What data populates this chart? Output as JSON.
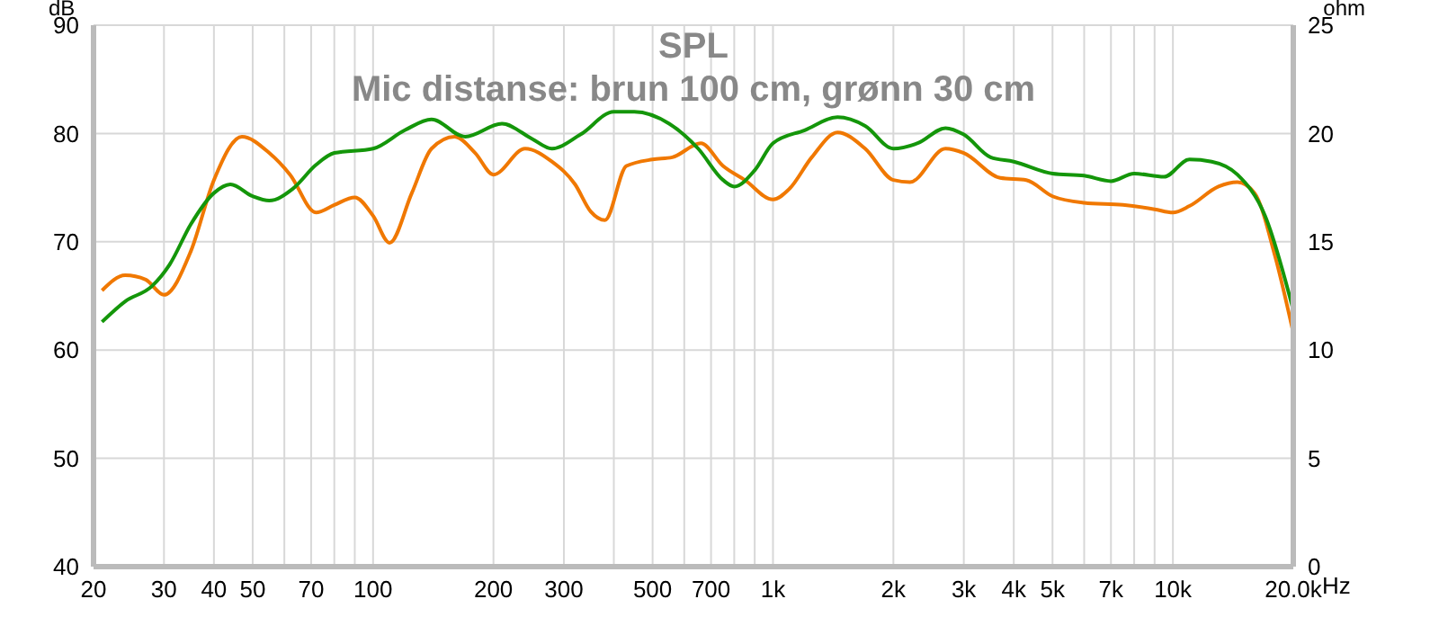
{
  "chart_data": {
    "type": "line",
    "title": "SPL",
    "subtitle": "Mic distanse: brun 100 cm, grønn 30 cm",
    "ylabel": "dB",
    "y2label": "ohm",
    "log": "x",
    "grid": true,
    "marker": "none",
    "line_style": "solid",
    "legend": false,
    "xlim": [
      20,
      20000
    ],
    "ylim": [
      40,
      90
    ],
    "y2lim": [
      0,
      25
    ],
    "xticks": [
      20,
      30,
      40,
      50,
      {
        "value": 60,
        "label": null
      },
      70,
      {
        "value": 80,
        "label": null
      },
      {
        "value": 90,
        "label": null
      },
      100,
      200,
      300,
      {
        "value": 400,
        "label": null
      },
      500,
      {
        "value": 600,
        "label": null
      },
      700,
      {
        "value": 800,
        "label": null
      },
      {
        "value": 900,
        "label": null
      },
      {
        "value": 1000,
        "label": "1k"
      },
      {
        "value": 2000,
        "label": "2k"
      },
      {
        "value": 3000,
        "label": "3k"
      },
      {
        "value": 4000,
        "label": "4k"
      },
      {
        "value": 5000,
        "label": "5k"
      },
      {
        "value": 6000,
        "label": null
      },
      {
        "value": 7000,
        "label": "7k"
      },
      {
        "value": 8000,
        "label": null
      },
      {
        "value": 9000,
        "label": null
      },
      {
        "value": 10000,
        "label": "10k"
      },
      {
        "value": 20000,
        "label": "20.0k"
      }
    ],
    "xlabel": "Hz",
    "yticks": [
      40,
      50,
      60,
      70,
      80,
      90
    ],
    "y2ticks": [
      0,
      5,
      10,
      15,
      20,
      25
    ],
    "series": [
      {
        "color": "#f07800",
        "x": [
          21,
          24,
          27,
          30,
          35,
          40,
          47,
          55,
          62,
          72,
          80,
          90,
          100,
          110,
          125,
          140,
          160,
          180,
          200,
          240,
          280,
          320,
          350,
          380,
          430,
          500,
          560,
          660,
          750,
          850,
          1000,
          1100,
          1250,
          1450,
          1700,
          2000,
          2200,
          2700,
          3000,
          3700,
          4300,
          5000,
          6000,
          7500,
          9000,
          10000,
          11000,
          13000,
          14500,
          16000,
          18000,
          20000
        ],
        "values": [
          65.5,
          66.9,
          66.5,
          65.1,
          69.1,
          75.7,
          79.7,
          78.2,
          76.2,
          72.7,
          73.4,
          74.1,
          72.4,
          69.9,
          74.5,
          78.6,
          79.7,
          78.2,
          76.2,
          78.6,
          77.4,
          75.3,
          72.8,
          72.0,
          77.0,
          77.6,
          77.8,
          79.1,
          77.0,
          75.7,
          73.9,
          74.9,
          77.8,
          80.1,
          78.6,
          75.7,
          75.5,
          78.6,
          78.2,
          75.9,
          75.7,
          74.2,
          73.6,
          73.4,
          73.0,
          72.7,
          73.3,
          75.1,
          75.5,
          74.5,
          68.7,
          61.6
        ]
      },
      {
        "color": "#14960a",
        "x": [
          21,
          24,
          28,
          31,
          35,
          40,
          44,
          50,
          55,
          63,
          72,
          80,
          100,
          120,
          140,
          170,
          210,
          250,
          280,
          330,
          400,
          450,
          550,
          650,
          750,
          800,
          900,
          1000,
          1200,
          1450,
          1700,
          2000,
          2300,
          2700,
          3000,
          3500,
          4000,
          5000,
          6000,
          7000,
          8000,
          9500,
          11000,
          12500,
          14500,
          17000,
          20000
        ],
        "values": [
          62.6,
          64.5,
          65.9,
          67.9,
          71.6,
          74.5,
          75.3,
          74.2,
          73.8,
          74.9,
          77.1,
          78.2,
          78.6,
          80.3,
          81.3,
          79.7,
          80.9,
          79.5,
          78.6,
          79.9,
          82.0,
          82.0,
          80.9,
          78.6,
          75.7,
          75.1,
          76.6,
          79.1,
          80.3,
          81.5,
          80.7,
          78.6,
          79.1,
          80.5,
          79.9,
          77.8,
          77.4,
          76.3,
          76.1,
          75.6,
          76.3,
          76.0,
          77.6,
          77.4,
          76.2,
          72.4,
          63.7
        ]
      }
    ]
  }
}
